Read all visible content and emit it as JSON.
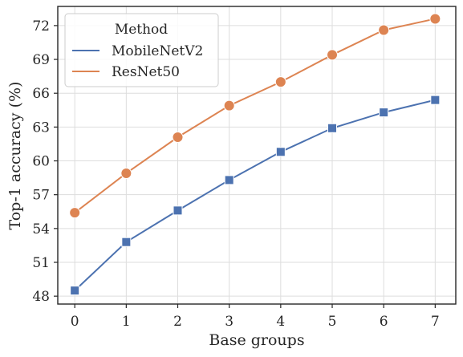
{
  "chart_data": {
    "type": "line",
    "title": "",
    "xlabel": "Base groups",
    "ylabel": "Top-1 accuracy (%)",
    "x": [
      0,
      1,
      2,
      3,
      4,
      5,
      6,
      7
    ],
    "xticks": [
      "0",
      "1",
      "2",
      "3",
      "4",
      "5",
      "6",
      "7"
    ],
    "xlim": [
      -0.33,
      7.4
    ],
    "yticks": [
      "48",
      "51",
      "54",
      "57",
      "60",
      "63",
      "66",
      "69",
      "72"
    ],
    "ylim": [
      47.3,
      73.7
    ],
    "grid": true,
    "legend": {
      "title": "Method",
      "placement": "top-left"
    },
    "series": [
      {
        "name": "MobileNetV2",
        "color": "#4c72b0",
        "marker": "square",
        "values": [
          48.5,
          52.8,
          55.6,
          58.3,
          60.8,
          62.9,
          64.3,
          65.4
        ]
      },
      {
        "name": "ResNet50",
        "color": "#dd8452",
        "marker": "circle",
        "values": [
          55.4,
          58.9,
          62.1,
          64.9,
          67.0,
          69.4,
          71.6,
          72.6
        ]
      }
    ]
  }
}
